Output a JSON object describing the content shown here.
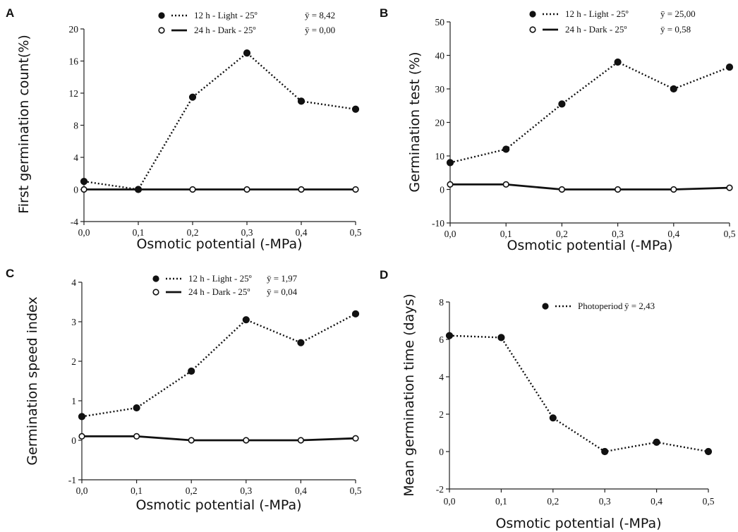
{
  "chart_data": [
    {
      "panel": "A",
      "type": "line",
      "xlabel": "Osmotic potential (-MPa)",
      "ylabel": "First germination count(%)",
      "xlim": [
        0.0,
        0.5
      ],
      "ylim": [
        -4,
        20
      ],
      "x_ticks": [
        "0,0",
        "0,1",
        "0,2",
        "0,3",
        "0,4",
        "0,5"
      ],
      "y_ticks": [
        "-4",
        "0",
        "4",
        "8",
        "12",
        "16",
        "20"
      ],
      "x": [
        0.0,
        0.1,
        0.2,
        0.3,
        0.4,
        0.5
      ],
      "series": [
        {
          "name": "12 h - Light - 25º",
          "mean_label": "ȳ = 8,42",
          "marker": "filled",
          "line": "dotted",
          "values": [
            1,
            0,
            11.5,
            17,
            11,
            10
          ]
        },
        {
          "name": "24 h - Dark  - 25º",
          "mean_label": "ȳ = 0,00",
          "marker": "open",
          "line": "solid",
          "values": [
            0,
            0,
            0,
            0,
            0,
            0
          ]
        }
      ]
    },
    {
      "panel": "B",
      "type": "line",
      "xlabel": "Osmotic potential (-MPa)",
      "ylabel": "Germination test (%)",
      "xlim": [
        0.0,
        0.5
      ],
      "ylim": [
        -10,
        50
      ],
      "x_ticks": [
        "0,0",
        "0,1",
        "0,2",
        "0,3",
        "0,4",
        "0,5"
      ],
      "y_ticks": [
        "-10",
        "0",
        "10",
        "20",
        "30",
        "40",
        "50"
      ],
      "x": [
        0.0,
        0.1,
        0.2,
        0.3,
        0.4,
        0.5
      ],
      "series": [
        {
          "name": "12 h - Light - 25º",
          "mean_label": "ȳ = 25,00",
          "marker": "filled",
          "line": "dotted",
          "values": [
            8,
            12,
            25.5,
            38,
            30,
            36.5
          ]
        },
        {
          "name": "24 h - Dark  - 25º",
          "mean_label": "ȳ = 0,58",
          "marker": "open",
          "line": "solid",
          "values": [
            1.5,
            1.5,
            0,
            0,
            0,
            0.5
          ]
        }
      ]
    },
    {
      "panel": "C",
      "type": "line",
      "xlabel": "Osmotic potential (-MPa)",
      "ylabel": "Germination speed index",
      "xlim": [
        0.0,
        0.5
      ],
      "ylim": [
        -1,
        4
      ],
      "x_ticks": [
        "0,0",
        "0,1",
        "0,2",
        "0,3",
        "0,4",
        "0,5"
      ],
      "y_ticks": [
        "-1",
        "0",
        "1",
        "2",
        "3",
        "4"
      ],
      "x": [
        0.0,
        0.1,
        0.2,
        0.3,
        0.4,
        0.5
      ],
      "series": [
        {
          "name": "12 h - Light - 25º",
          "mean_label": "ȳ = 1,97",
          "marker": "filled",
          "line": "dotted",
          "values": [
            0.6,
            0.82,
            1.75,
            3.05,
            2.47,
            3.2
          ]
        },
        {
          "name": "24 h - Dark  - 25º",
          "mean_label": "ȳ = 0,04",
          "marker": "open",
          "line": "solid",
          "values": [
            0.1,
            0.1,
            0,
            0,
            0,
            0.05
          ]
        }
      ]
    },
    {
      "panel": "D",
      "type": "line",
      "xlabel": "Osmotic potential (-MPa)",
      "ylabel": "Mean germination time  (days)",
      "xlim": [
        0.0,
        0.5
      ],
      "ylim": [
        -2,
        8
      ],
      "x_ticks": [
        "0,0",
        "0,1",
        "0,2",
        "0,3",
        "0,4",
        "0,5"
      ],
      "y_ticks": [
        "-2",
        "0",
        "2",
        "4",
        "6",
        "8"
      ],
      "x": [
        0.0,
        0.1,
        0.2,
        0.3,
        0.4,
        0.5
      ],
      "series": [
        {
          "name": "Photoperiod",
          "mean_label": "ȳ = 2,43",
          "marker": "filled",
          "line": "dotted",
          "values": [
            6.2,
            6.1,
            1.8,
            0,
            0.5,
            0
          ]
        }
      ]
    }
  ]
}
